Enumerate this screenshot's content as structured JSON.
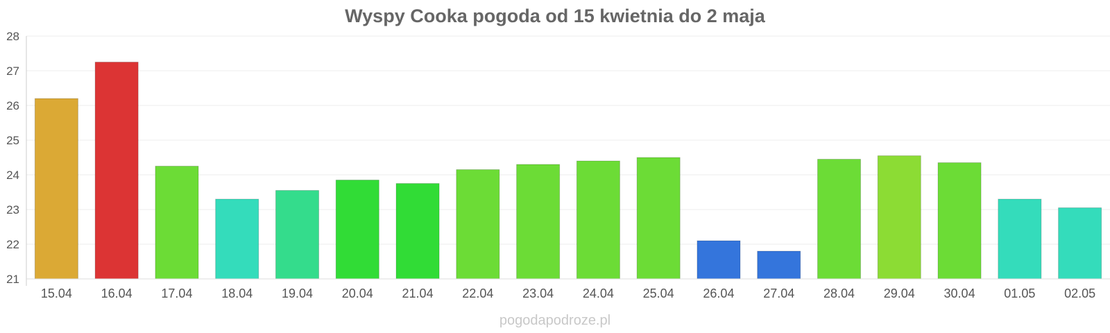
{
  "chart_data": {
    "type": "bar",
    "title": "Wyspy Cooka pogoda od 15 kwietnia do 2 maja",
    "xlabel": "",
    "ylabel": "",
    "ylim": [
      21,
      28
    ],
    "yticks": [
      "21",
      "22",
      "23",
      "24",
      "25",
      "26",
      "27",
      "28"
    ],
    "grid": true,
    "categories": [
      "15.04",
      "16.04",
      "17.04",
      "18.04",
      "19.04",
      "20.04",
      "21.04",
      "22.04",
      "23.04",
      "24.04",
      "25.04",
      "26.04",
      "27.04",
      "28.04",
      "29.04",
      "30.04",
      "01.05",
      "02.05"
    ],
    "values": [
      26.2,
      27.25,
      24.25,
      23.3,
      23.55,
      23.85,
      23.75,
      24.15,
      24.3,
      24.4,
      24.5,
      22.1,
      21.8,
      24.45,
      24.55,
      24.35,
      23.3,
      23.05
    ],
    "colors": [
      "#dba935",
      "#dc3434",
      "#6cdc36",
      "#34dcbb",
      "#34dc8c",
      "#31dc36",
      "#31dc36",
      "#6cdc36",
      "#6cdc36",
      "#6cdc36",
      "#6cdc36",
      "#3475dc",
      "#3475dc",
      "#6cdc36",
      "#8cdc34",
      "#6cdc36",
      "#34dcbb",
      "#34dcbb"
    ]
  },
  "watermark": "pogodapodroze.pl"
}
